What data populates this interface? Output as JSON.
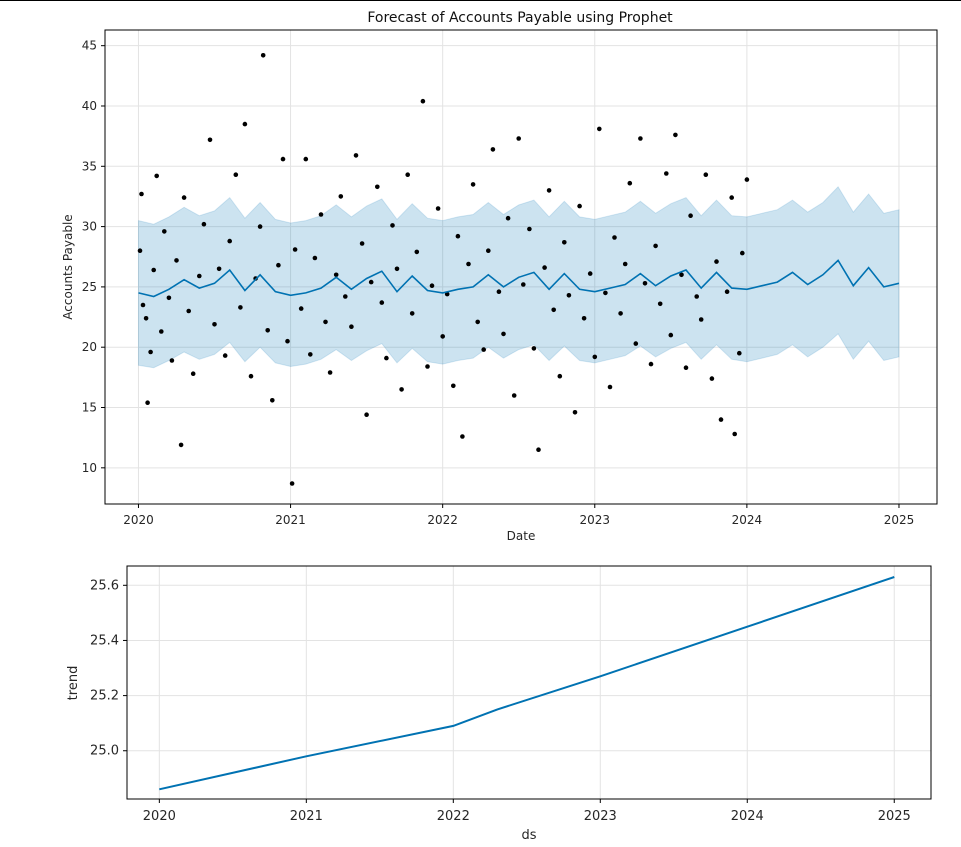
{
  "chart_data": [
    {
      "type": "line",
      "title": "Forecast of Accounts Payable using Prophet",
      "xlabel": "Date",
      "ylabel": "Accounts Payable",
      "xlim": [
        2019.78,
        2025.25
      ],
      "ylim": [
        7.0,
        46.3
      ],
      "x_ticks": [
        "2020",
        "2021",
        "2022",
        "2023",
        "2024",
        "2025"
      ],
      "y_ticks": [
        "10",
        "15",
        "20",
        "25",
        "30",
        "35",
        "40",
        "45"
      ],
      "grid": true,
      "history_end": 2024.0,
      "series": [],
      "forecast_line": {
        "color": "#0072b2",
        "x": [
          2020.0,
          2020.1,
          2020.2,
          2020.3,
          2020.4,
          2020.5,
          2020.6,
          2020.7,
          2020.8,
          2020.9,
          2021.0,
          2021.1,
          2021.2,
          2021.3,
          2021.4,
          2021.5,
          2021.6,
          2021.7,
          2021.8,
          2021.9,
          2022.0,
          2022.1,
          2022.2,
          2022.3,
          2022.4,
          2022.5,
          2022.6,
          2022.7,
          2022.8,
          2022.9,
          2023.0,
          2023.1,
          2023.2,
          2023.3,
          2023.4,
          2023.5,
          2023.6,
          2023.7,
          2023.8,
          2023.9,
          2024.0,
          2024.1,
          2024.2,
          2024.3,
          2024.4,
          2024.5,
          2024.6,
          2024.7,
          2024.8,
          2024.9,
          2025.0
        ],
        "yhat": [
          24.5,
          24.2,
          24.8,
          25.6,
          24.9,
          25.3,
          26.4,
          24.7,
          26.0,
          24.6,
          24.3,
          24.5,
          24.9,
          25.8,
          24.8,
          25.7,
          26.3,
          24.6,
          25.9,
          24.7,
          24.5,
          24.8,
          25.0,
          26.0,
          25.0,
          25.8,
          26.2,
          24.8,
          26.1,
          24.8,
          24.6,
          24.9,
          25.2,
          26.1,
          25.1,
          25.9,
          26.4,
          24.9,
          26.2,
          24.9,
          24.8,
          25.1,
          25.4,
          26.2,
          25.2,
          26.0,
          27.2,
          25.1,
          26.6,
          25.0,
          25.3
        ],
        "yhat_lower": [
          18.5,
          18.3,
          18.9,
          19.6,
          19.0,
          19.4,
          20.4,
          18.8,
          20.0,
          18.7,
          18.4,
          18.6,
          19.0,
          19.8,
          18.9,
          19.7,
          20.3,
          18.7,
          19.9,
          18.8,
          18.6,
          18.9,
          19.1,
          20.0,
          19.1,
          19.8,
          20.2,
          18.9,
          20.1,
          18.9,
          18.7,
          19.0,
          19.3,
          20.1,
          19.2,
          19.9,
          20.4,
          19.0,
          20.2,
          19.0,
          18.8,
          19.1,
          19.4,
          20.2,
          19.2,
          20.0,
          21.1,
          19.0,
          20.5,
          18.9,
          19.2
        ],
        "yhat_upper": [
          30.5,
          30.2,
          30.8,
          31.6,
          30.9,
          31.3,
          32.4,
          30.7,
          32.0,
          30.6,
          30.3,
          30.5,
          30.9,
          31.8,
          30.8,
          31.7,
          32.3,
          30.6,
          31.9,
          30.7,
          30.5,
          30.8,
          31.0,
          32.0,
          31.0,
          31.8,
          32.2,
          30.8,
          32.1,
          30.8,
          30.6,
          30.9,
          31.2,
          32.1,
          31.1,
          31.9,
          32.4,
          30.9,
          32.2,
          30.9,
          30.8,
          31.1,
          31.4,
          32.2,
          31.2,
          32.0,
          33.3,
          31.2,
          32.7,
          31.1,
          31.4
        ]
      },
      "observed_points": [
        [
          2020.01,
          28.0
        ],
        [
          2020.02,
          32.7
        ],
        [
          2020.03,
          23.5
        ],
        [
          2020.05,
          22.4
        ],
        [
          2020.06,
          15.4
        ],
        [
          2020.08,
          19.6
        ],
        [
          2020.1,
          26.4
        ],
        [
          2020.12,
          34.2
        ],
        [
          2020.15,
          21.3
        ],
        [
          2020.17,
          29.6
        ],
        [
          2020.2,
          24.1
        ],
        [
          2020.22,
          18.9
        ],
        [
          2020.25,
          27.2
        ],
        [
          2020.28,
          11.9
        ],
        [
          2020.3,
          32.4
        ],
        [
          2020.33,
          23.0
        ],
        [
          2020.36,
          17.8
        ],
        [
          2020.4,
          25.9
        ],
        [
          2020.43,
          30.2
        ],
        [
          2020.47,
          37.2
        ],
        [
          2020.5,
          21.9
        ],
        [
          2020.53,
          26.5
        ],
        [
          2020.57,
          19.3
        ],
        [
          2020.6,
          28.8
        ],
        [
          2020.64,
          34.3
        ],
        [
          2020.67,
          23.3
        ],
        [
          2020.7,
          38.5
        ],
        [
          2020.74,
          17.6
        ],
        [
          2020.77,
          25.7
        ],
        [
          2020.8,
          30.0
        ],
        [
          2020.82,
          44.2
        ],
        [
          2020.85,
          21.4
        ],
        [
          2020.88,
          15.6
        ],
        [
          2020.92,
          26.8
        ],
        [
          2020.95,
          35.6
        ],
        [
          2020.98,
          20.5
        ],
        [
          2021.01,
          8.7
        ],
        [
          2021.03,
          28.1
        ],
        [
          2021.07,
          23.2
        ],
        [
          2021.1,
          35.6
        ],
        [
          2021.13,
          19.4
        ],
        [
          2021.16,
          27.4
        ],
        [
          2021.2,
          31.0
        ],
        [
          2021.23,
          22.1
        ],
        [
          2021.26,
          17.9
        ],
        [
          2021.3,
          26.0
        ],
        [
          2021.33,
          32.5
        ],
        [
          2021.36,
          24.2
        ],
        [
          2021.4,
          21.7
        ],
        [
          2021.43,
          35.9
        ],
        [
          2021.47,
          28.6
        ],
        [
          2021.5,
          14.4
        ],
        [
          2021.53,
          25.4
        ],
        [
          2021.57,
          33.3
        ],
        [
          2021.6,
          23.7
        ],
        [
          2021.63,
          19.1
        ],
        [
          2021.67,
          30.1
        ],
        [
          2021.7,
          26.5
        ],
        [
          2021.73,
          16.5
        ],
        [
          2021.77,
          34.3
        ],
        [
          2021.8,
          22.8
        ],
        [
          2021.83,
          27.9
        ],
        [
          2021.87,
          40.4
        ],
        [
          2021.9,
          18.4
        ],
        [
          2021.93,
          25.1
        ],
        [
          2021.97,
          31.5
        ],
        [
          2022.0,
          20.9
        ],
        [
          2022.03,
          24.4
        ],
        [
          2022.07,
          16.8
        ],
        [
          2022.1,
          29.2
        ],
        [
          2022.13,
          12.6
        ],
        [
          2022.17,
          26.9
        ],
        [
          2022.2,
          33.5
        ],
        [
          2022.23,
          22.1
        ],
        [
          2022.27,
          19.8
        ],
        [
          2022.3,
          28.0
        ],
        [
          2022.33,
          36.4
        ],
        [
          2022.37,
          24.6
        ],
        [
          2022.4,
          21.1
        ],
        [
          2022.43,
          30.7
        ],
        [
          2022.47,
          16.0
        ],
        [
          2022.5,
          37.3
        ],
        [
          2022.53,
          25.2
        ],
        [
          2022.57,
          29.8
        ],
        [
          2022.6,
          19.9
        ],
        [
          2022.63,
          11.5
        ],
        [
          2022.67,
          26.6
        ],
        [
          2022.7,
          33.0
        ],
        [
          2022.73,
          23.1
        ],
        [
          2022.77,
          17.6
        ],
        [
          2022.8,
          28.7
        ],
        [
          2022.83,
          24.3
        ],
        [
          2022.87,
          14.6
        ],
        [
          2022.9,
          31.7
        ],
        [
          2022.93,
          22.4
        ],
        [
          2022.97,
          26.1
        ],
        [
          2023.0,
          19.2
        ],
        [
          2023.03,
          38.1
        ],
        [
          2023.07,
          24.5
        ],
        [
          2023.1,
          16.7
        ],
        [
          2023.13,
          29.1
        ],
        [
          2023.17,
          22.8
        ],
        [
          2023.2,
          26.9
        ],
        [
          2023.23,
          33.6
        ],
        [
          2023.27,
          20.3
        ],
        [
          2023.3,
          37.3
        ],
        [
          2023.33,
          25.3
        ],
        [
          2023.37,
          18.6
        ],
        [
          2023.4,
          28.4
        ],
        [
          2023.43,
          23.6
        ],
        [
          2023.47,
          34.4
        ],
        [
          2023.5,
          21.0
        ],
        [
          2023.53,
          37.6
        ],
        [
          2023.57,
          26.0
        ],
        [
          2023.6,
          18.3
        ],
        [
          2023.63,
          30.9
        ],
        [
          2023.67,
          24.2
        ],
        [
          2023.7,
          22.3
        ],
        [
          2023.73,
          34.3
        ],
        [
          2023.77,
          17.4
        ],
        [
          2023.8,
          27.1
        ],
        [
          2023.83,
          14.0
        ],
        [
          2023.87,
          24.6
        ],
        [
          2023.9,
          32.4
        ],
        [
          2023.92,
          12.8
        ],
        [
          2023.95,
          19.5
        ],
        [
          2023.97,
          27.8
        ],
        [
          2024.0,
          33.9
        ]
      ]
    },
    {
      "type": "line",
      "title": "",
      "xlabel": "ds",
      "ylabel": "trend",
      "xlim": [
        2019.78,
        2025.25
      ],
      "ylim": [
        24.825,
        25.67
      ],
      "x_ticks": [
        "2020",
        "2021",
        "2022",
        "2023",
        "2024",
        "2025"
      ],
      "y_ticks": [
        "25.0",
        "25.2",
        "25.4",
        "25.6"
      ],
      "grid": true,
      "series": [],
      "trend_line": {
        "color": "#0072b2",
        "x": [
          2020.0,
          2021.0,
          2022.0,
          2022.3,
          2023.0,
          2024.0,
          2025.0
        ],
        "y": [
          24.86,
          24.98,
          25.09,
          25.15,
          25.27,
          25.45,
          25.63
        ]
      }
    }
  ]
}
